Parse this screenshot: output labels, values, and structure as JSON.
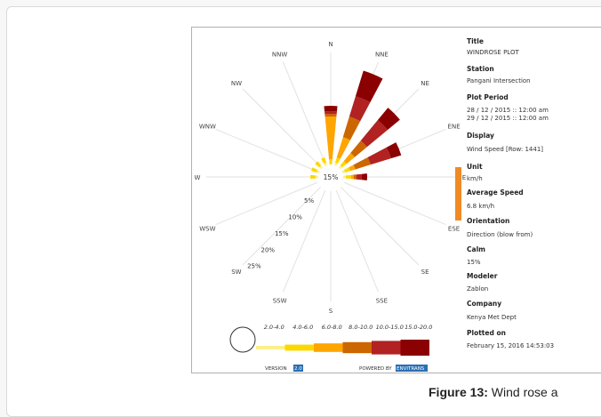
{
  "caption": {
    "label": "Figure 13:",
    "text": "Wind rose a"
  },
  "info": {
    "title_label": "Title",
    "title_value": "WINDROSE PLOT",
    "station_label": "Station",
    "station_value": "Pangani Intersection",
    "period_label": "Plot Period",
    "period_start": "28 / 12 / 2015 :: 12:00 am",
    "period_end": "29 / 12 / 2015 :: 12:00 am",
    "display_label": "Display",
    "display_value": "Wind Speed [Row: 1441]",
    "unit_label": "Unit",
    "unit_value": "km/h",
    "avg_label": "Average Speed",
    "avg_value": "6.8 km/h",
    "orient_label": "Orientation",
    "orient_value": "Direction (blow from)",
    "calm_label": "Calm",
    "calm_value": "15%",
    "modeler_label": "Modeler",
    "modeler_value": "Zablon",
    "company_label": "Company",
    "company_value": "Kenya Met Dept",
    "plotted_label": "Plotted on",
    "plotted_value": "February 15, 2016 14:53:03"
  },
  "footer": {
    "version_label": "VERSION",
    "version_value": "2.0",
    "powered_label": "POWERED BY",
    "powered_value": "ENVITRANS"
  },
  "colors": {
    "bins": [
      "#fbf08a",
      "#ffd700",
      "#ffa500",
      "#cc6600",
      "#b22222",
      "#8b0000"
    ]
  },
  "chart_data": {
    "type": "windrose",
    "directions": [
      "N",
      "NNE",
      "NE",
      "ENE",
      "E",
      "ESE",
      "SE",
      "SSE",
      "S",
      "SSW",
      "SW",
      "WSW",
      "W",
      "WNW",
      "NW",
      "NNW"
    ],
    "center_label": "15%",
    "ring_labels": [
      "5%",
      "10%",
      "15%",
      "20%",
      "25%"
    ],
    "rmax": 25,
    "speed_bins": [
      "2.0-4.0",
      "4.0-6.0",
      "6.0-8.0",
      "8.0-10.0",
      "10.0-15.0",
      "15.0-20.0"
    ],
    "series": [
      {
        "name": "2.0-4.0",
        "values": [
          0,
          0.5,
          0.5,
          0.5,
          0.5,
          0,
          0,
          0,
          0,
          0,
          0,
          0,
          0.5,
          0.5,
          0.5,
          0.5
        ]
      },
      {
        "name": "4.0-6.0",
        "values": [
          1,
          1,
          1,
          1,
          1,
          0,
          0,
          0,
          0,
          0,
          0,
          0,
          1,
          1,
          1,
          1
        ]
      },
      {
        "name": "6.0-8.0",
        "values": [
          8,
          4,
          2,
          1,
          0.5,
          0,
          0,
          0,
          0,
          0,
          0,
          0,
          0,
          0,
          0,
          0
        ]
      },
      {
        "name": "8.0-10.0",
        "values": [
          0.5,
          4,
          3,
          3,
          0.5,
          0,
          0,
          0,
          0,
          0,
          0,
          0,
          0,
          0,
          0,
          0
        ]
      },
      {
        "name": "10.0-15.0",
        "values": [
          0.5,
          4,
          5,
          4,
          1,
          0,
          0,
          0,
          0,
          0,
          0,
          0,
          0,
          0,
          0,
          0
        ]
      },
      {
        "name": "15.0-20.0",
        "values": [
          1,
          5,
          3,
          2,
          1,
          0,
          0,
          0,
          0,
          0,
          0,
          0,
          0,
          0,
          0,
          0
        ]
      }
    ]
  }
}
